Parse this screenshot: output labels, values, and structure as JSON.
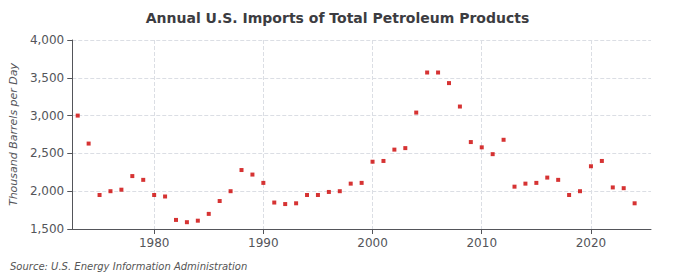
{
  "chart_data": {
    "type": "scatter",
    "title": "Annual U.S. Imports of Total Petroleum Products",
    "ylabel": "Thousand Barrels per Day",
    "annotations": [
      "Source: U.S. Energy Information Administration"
    ],
    "color": "#cc0000",
    "marker": "square",
    "grid": true,
    "xlim": [
      1972.5,
      2025.5
    ],
    "xticks": [
      1980,
      1990,
      2000,
      2010,
      2020
    ],
    "ylim": [
      1500,
      4000
    ],
    "yticks": [
      {
        "value": 1500,
        "label": "1,500"
      },
      {
        "value": 2000,
        "label": "2,000"
      },
      {
        "value": 2500,
        "label": "2,500"
      },
      {
        "value": 3000,
        "label": "3,000"
      },
      {
        "value": 3500,
        "label": "3,500"
      },
      {
        "value": 4000,
        "label": "4,000"
      }
    ],
    "x": [
      1973,
      1974,
      1975,
      1976,
      1977,
      1978,
      1979,
      1980,
      1981,
      1982,
      1983,
      1984,
      1985,
      1986,
      1987,
      1988,
      1989,
      1990,
      1991,
      1992,
      1993,
      1994,
      1995,
      1996,
      1997,
      1998,
      1999,
      2000,
      2001,
      2002,
      2003,
      2004,
      2005,
      2006,
      2007,
      2008,
      2009,
      2010,
      2011,
      2012,
      2013,
      2014,
      2015,
      2016,
      2017,
      2018,
      2019,
      2020,
      2021,
      2022,
      2023,
      2024
    ],
    "values": [
      3000,
      2630,
      1950,
      2000,
      2020,
      2200,
      2150,
      1950,
      1930,
      1620,
      1590,
      1610,
      1700,
      1870,
      2000,
      2280,
      2220,
      2110,
      1850,
      1830,
      1840,
      1950,
      1950,
      1990,
      2000,
      2100,
      2110,
      2390,
      2400,
      2550,
      2570,
      3040,
      3570,
      3570,
      3430,
      3120,
      2650,
      2580,
      2490,
      2680,
      2060,
      2100,
      2110,
      2180,
      2150,
      1950,
      2000,
      2330,
      2400,
      2050,
      2040,
      1840
    ]
  }
}
